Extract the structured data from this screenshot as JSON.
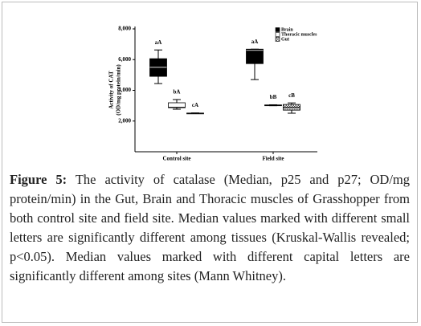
{
  "chart_data": {
    "type": "box",
    "ylabel": [
      "Activity of CAT",
      "(OD/mg protein/min)"
    ],
    "categories": [
      "Control site",
      "Field site"
    ],
    "ylim": [
      0,
      8000
    ],
    "yticks": [
      {
        "value": 2000,
        "label": "2,000"
      },
      {
        "value": 4000,
        "label": "4,000"
      },
      {
        "value": 6000,
        "label": "6,000"
      },
      {
        "value": 8000,
        "label": "8,000"
      }
    ],
    "series": [
      {
        "name": "Brain",
        "color": "#000000",
        "whisker_low": [
          4440,
          4700
        ],
        "q1": [
          4910,
          5740
        ],
        "median": [
          5500,
          6600
        ],
        "q3": [
          6060,
          6680
        ],
        "whisker_high": [
          6630,
          6680
        ],
        "labels": [
          "aA",
          "aA"
        ]
      },
      {
        "name": "Thoracic muscles",
        "color": "#ffffff",
        "whisker_low": [
          2770,
          3000
        ],
        "q1": [
          2870,
          3010
        ],
        "median": [
          2900,
          3030
        ],
        "q3": [
          3190,
          3050
        ],
        "whisker_high": [
          3400,
          3060
        ],
        "labels": [
          "bA",
          "bB"
        ]
      },
      {
        "name": "Gut",
        "color": "#555555",
        "hatch": true,
        "whisker_low": [
          2490,
          2510
        ],
        "q1": [
          2500,
          2710
        ],
        "median": [
          2510,
          2900
        ],
        "q3": [
          2520,
          3080
        ],
        "whisker_high": [
          2530,
          3180
        ],
        "labels": [
          "cA",
          "cB"
        ]
      }
    ]
  },
  "caption": {
    "label": "Figure 5:",
    "text": "The activity of catalase (Median, p25 and p27; OD/mg protein/min) in the Gut, Brain and Thoracic muscles of Grasshopper from both control site and field site. Median values marked with different small letters are significantly different among tissues (Kruskal-Wallis revealed; p<0.05). Median values marked with different capital letters are significantly different among sites (Mann Whitney)."
  }
}
